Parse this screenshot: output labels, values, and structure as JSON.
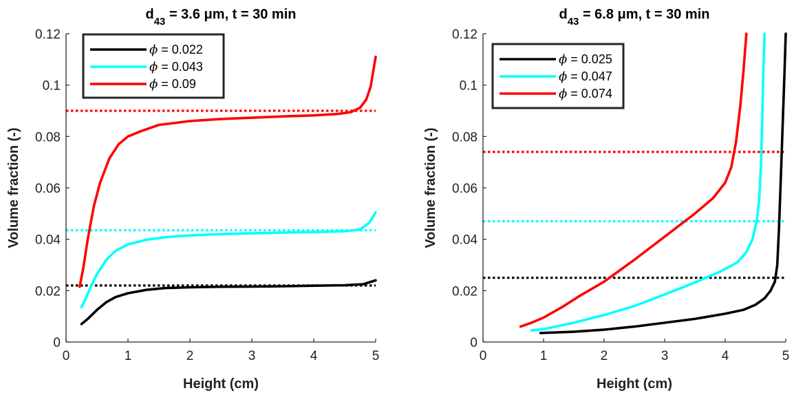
{
  "chart_data": [
    {
      "type": "line",
      "title": "d43 = 3.6 μm, t = 30 min",
      "title_main": "d",
      "title_sub": "43",
      "title_rest": " = 3.6 μm, t = 30 min",
      "xlabel": "Height (cm)",
      "ylabel": "Volume fraction (-)",
      "xlim": [
        0,
        5
      ],
      "ylim": [
        0,
        0.12
      ],
      "xticks": [
        0,
        1,
        2,
        3,
        4,
        5
      ],
      "yticks": [
        0,
        0.02,
        0.04,
        0.06,
        0.08,
        0.1,
        0.12
      ],
      "xtick_labels": [
        "0",
        "1",
        "2",
        "3",
        "4",
        "5"
      ],
      "ytick_labels": [
        "0",
        "0.02",
        "0.04",
        "0.06",
        "0.08",
        "0.1",
        "0.12"
      ],
      "legend_position": "top-left",
      "series": [
        {
          "name": "ϕ = 0.022",
          "legend_label": "= 0.022",
          "color": "#000000",
          "x": [
            0.25,
            0.35,
            0.5,
            0.65,
            0.8,
            1.0,
            1.3,
            1.6,
            2.0,
            2.5,
            3.0,
            3.5,
            4.0,
            4.5,
            4.8,
            5.0
          ],
          "y": [
            0.007,
            0.009,
            0.0125,
            0.0155,
            0.0175,
            0.019,
            0.0203,
            0.021,
            0.0213,
            0.0215,
            0.0216,
            0.0217,
            0.0219,
            0.0221,
            0.0225,
            0.024
          ]
        },
        {
          "name": "ϕ = 0.043",
          "legend_label": "= 0.043",
          "color": "#00ffff",
          "x": [
            0.25,
            0.3,
            0.4,
            0.5,
            0.65,
            0.8,
            1.0,
            1.3,
            1.6,
            2.0,
            2.5,
            3.0,
            3.5,
            4.0,
            4.5,
            4.75,
            4.9,
            5.0
          ],
          "y": [
            0.0135,
            0.016,
            0.0215,
            0.0265,
            0.032,
            0.0355,
            0.038,
            0.0398,
            0.0408,
            0.0415,
            0.042,
            0.0423,
            0.0426,
            0.0428,
            0.0431,
            0.0438,
            0.0465,
            0.0505
          ]
        },
        {
          "name": "ϕ = 0.09",
          "legend_label": "= 0.09",
          "color": "#ff0000",
          "x": [
            0.22,
            0.28,
            0.35,
            0.45,
            0.55,
            0.7,
            0.85,
            1.0,
            1.2,
            1.5,
            2.0,
            2.5,
            3.0,
            3.5,
            4.0,
            4.4,
            4.6,
            4.75,
            4.85,
            4.92,
            5.0
          ],
          "y": [
            0.0215,
            0.029,
            0.04,
            0.053,
            0.062,
            0.0715,
            0.077,
            0.08,
            0.082,
            0.0845,
            0.086,
            0.0868,
            0.0873,
            0.0878,
            0.0882,
            0.0888,
            0.0895,
            0.0912,
            0.0945,
            0.0995,
            0.111
          ]
        }
      ],
      "reference_lines": [
        {
          "y": 0.022,
          "color": "#000000",
          "style": "dotted"
        },
        {
          "y": 0.0435,
          "color": "#00ffff",
          "style": "dotted"
        },
        {
          "y": 0.09,
          "color": "#ff0000",
          "style": "dotted"
        }
      ]
    },
    {
      "type": "line",
      "title": "d43 = 6.8 μm, t = 30 min",
      "title_main": "d",
      "title_sub": "43",
      "title_rest": " = 6.8 μm, t = 30 min",
      "xlabel": "Height (cm)",
      "ylabel": "Volume fraction (-)",
      "xlim": [
        0,
        5
      ],
      "ylim": [
        0,
        0.12
      ],
      "xticks": [
        0,
        1,
        2,
        3,
        4,
        5
      ],
      "yticks": [
        0,
        0.02,
        0.04,
        0.06,
        0.08,
        0.1,
        0.12
      ],
      "xtick_labels": [
        "0",
        "1",
        "2",
        "3",
        "4",
        "5"
      ],
      "ytick_labels": [
        "0",
        "0.02",
        "0.04",
        "0.06",
        "0.08",
        "0.1",
        "0.12"
      ],
      "legend_position": "top-left",
      "series": [
        {
          "name": "ϕ = 0.025",
          "legend_label": "= 0.025",
          "color": "#000000",
          "x": [
            0.95,
            1.5,
            2.0,
            2.5,
            3.0,
            3.5,
            4.0,
            4.3,
            4.5,
            4.65,
            4.75,
            4.82,
            4.86,
            4.89,
            4.92,
            4.95,
            4.98,
            5.0
          ],
          "y": [
            0.0035,
            0.004,
            0.0048,
            0.006,
            0.0075,
            0.009,
            0.011,
            0.0125,
            0.0145,
            0.017,
            0.02,
            0.0235,
            0.03,
            0.045,
            0.065,
            0.085,
            0.105,
            0.12
          ]
        },
        {
          "name": "ϕ = 0.047",
          "legend_label": "= 0.047",
          "color": "#00ffff",
          "x": [
            0.8,
            1.0,
            1.5,
            2.0,
            2.5,
            3.0,
            3.5,
            3.9,
            4.2,
            4.35,
            4.45,
            4.52,
            4.56,
            4.59,
            4.61,
            4.63,
            4.65
          ],
          "y": [
            0.0045,
            0.005,
            0.0075,
            0.0105,
            0.014,
            0.0185,
            0.0232,
            0.0272,
            0.031,
            0.035,
            0.04,
            0.047,
            0.055,
            0.068,
            0.085,
            0.105,
            0.12
          ]
        },
        {
          "name": "ϕ = 0.074",
          "legend_label": "= 0.074",
          "color": "#ff0000",
          "x": [
            0.62,
            0.8,
            1.0,
            1.3,
            1.6,
            2.0,
            2.5,
            3.0,
            3.5,
            3.8,
            4.0,
            4.1,
            4.18,
            4.25,
            4.3,
            4.35
          ],
          "y": [
            0.006,
            0.0075,
            0.0095,
            0.0135,
            0.018,
            0.0235,
            0.032,
            0.041,
            0.05,
            0.056,
            0.062,
            0.068,
            0.078,
            0.092,
            0.105,
            0.12
          ]
        }
      ],
      "reference_lines": [
        {
          "y": 0.025,
          "color": "#000000",
          "style": "dotted"
        },
        {
          "y": 0.047,
          "color": "#00ffff",
          "style": "dotted"
        },
        {
          "y": 0.074,
          "color": "#ff0000",
          "style": "dotted"
        }
      ]
    }
  ],
  "legend_symbol": "ϕ",
  "grid": false
}
